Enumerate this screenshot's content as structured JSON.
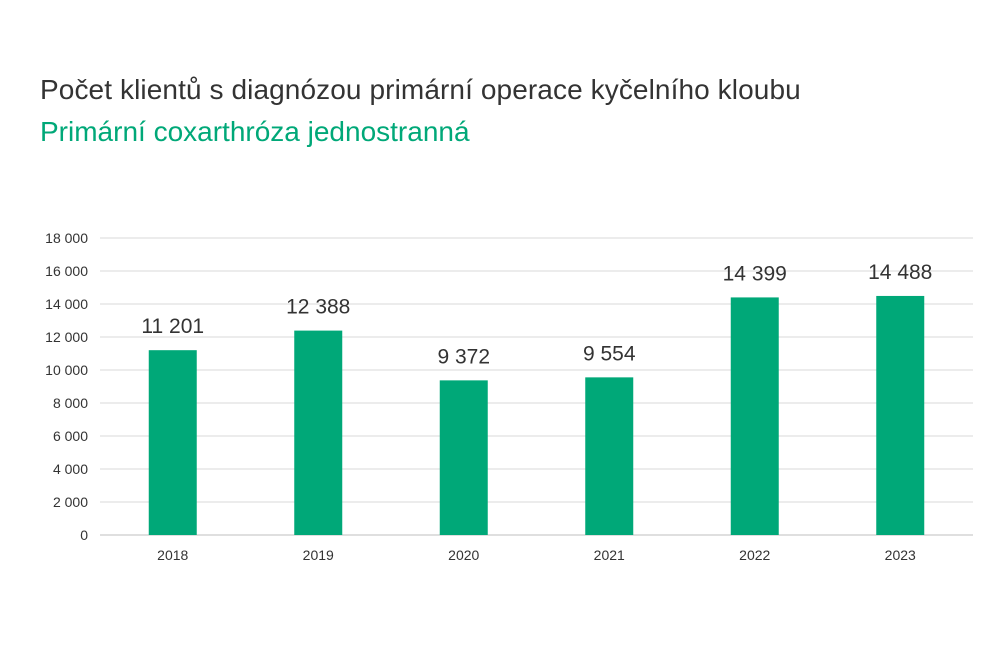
{
  "chart_data": {
    "type": "bar",
    "title": "Počet klientů s diagnózou primární operace kyčelního kloubu",
    "subtitle": "Primární coxarthróza jednostranná",
    "categories": [
      "2018",
      "2019",
      "2020",
      "2021",
      "2022",
      "2023"
    ],
    "values": [
      11201,
      12388,
      9372,
      9554,
      14399,
      14488
    ],
    "value_labels": [
      "11 201",
      "12 388",
      "9 372",
      "9 554",
      "14 399",
      "14 488"
    ],
    "y_ticks": [
      "0",
      "2 000",
      "4 000",
      "6 000",
      "8 000",
      "10 000",
      "12 000",
      "14 000",
      "16 000",
      "18 000"
    ],
    "ylim": [
      0,
      18000
    ],
    "grid": true,
    "legend": "none",
    "colors": {
      "bar": "#00a878",
      "subtitle": "#00a878",
      "grid": "#d9d9d9",
      "axis": "#bfbfbf"
    }
  }
}
